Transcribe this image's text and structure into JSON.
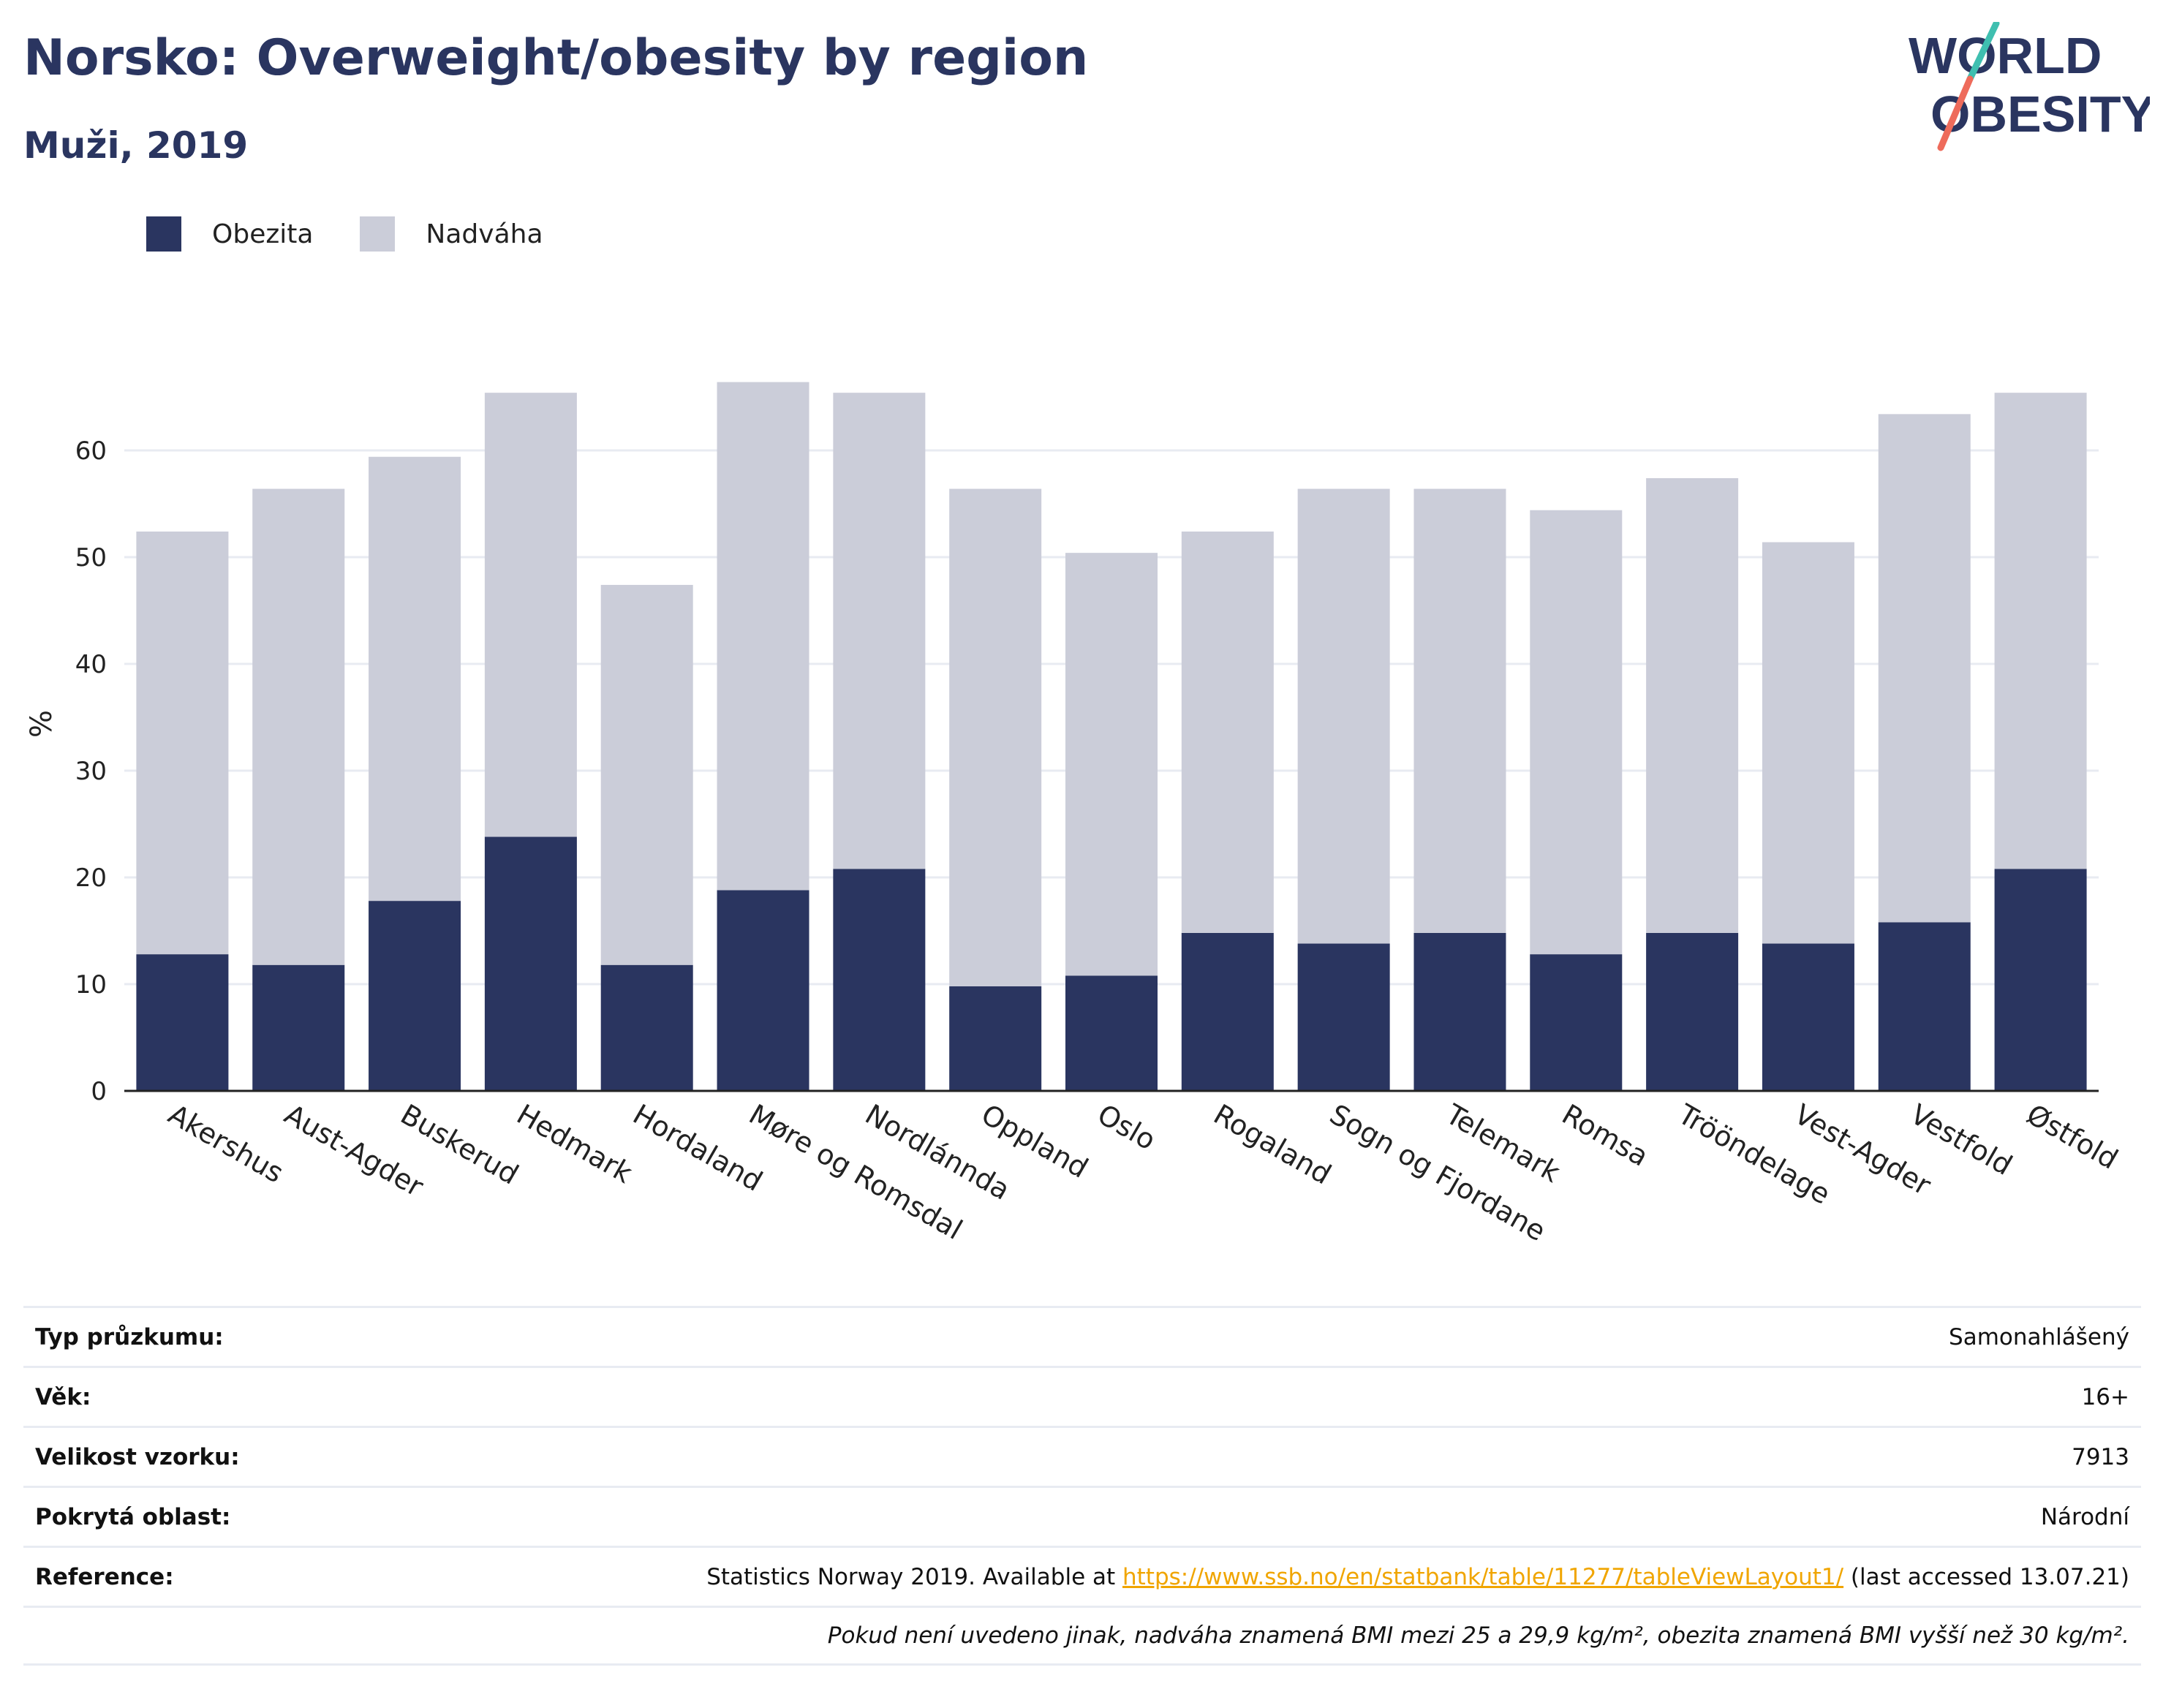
{
  "header": {
    "title": "Norsko: Overweight/obesity by region",
    "subtitle": "Muži, 2019"
  },
  "logo": {
    "line1": "WORLD",
    "line2": "OBESITY"
  },
  "colors": {
    "obesity": "#2a3560",
    "overweight": "#cbcdd9",
    "grid": "#e8ebf2",
    "axis": "#222222",
    "link": "#f0a500"
  },
  "legend": [
    {
      "label": "Obezita",
      "color": "#2a3560"
    },
    {
      "label": "Nadváha",
      "color": "#cbcdd9"
    }
  ],
  "chart_data": {
    "type": "bar",
    "stacked": true,
    "ylabel": "%",
    "ylim": [
      0,
      70
    ],
    "yticks": [
      0,
      10,
      20,
      30,
      40,
      50,
      60
    ],
    "categories": [
      "Akershus",
      "Aust-Agder",
      "Buskerud",
      "Hedmark",
      "Hordaland",
      "Møre og Romsdal",
      "Nordlánnda",
      "Oppland",
      "Oslo",
      "Rogaland",
      "Sogn og Fjordane",
      "Telemark",
      "Romsa",
      "Trööndelage",
      "Vest-Agder",
      "Vestfold",
      "Østfold"
    ],
    "series": [
      {
        "name": "Obezita",
        "values": [
          12.8,
          11.8,
          17.8,
          23.8,
          11.8,
          18.8,
          20.8,
          9.8,
          10.8,
          14.8,
          13.8,
          14.8,
          12.8,
          14.8,
          13.8,
          15.8,
          20.8
        ]
      },
      {
        "name": "Nadváha",
        "values": [
          39.6,
          44.6,
          41.6,
          41.6,
          35.6,
          47.6,
          44.6,
          46.6,
          39.6,
          37.6,
          42.6,
          41.6,
          41.6,
          42.6,
          37.6,
          47.6,
          44.6
        ]
      }
    ],
    "grid": true,
    "legend_position": "top-left"
  },
  "info": {
    "rows": [
      {
        "label": "Typ průzkumu:",
        "value": "Samonahlášený"
      },
      {
        "label": "Věk:",
        "value": "16+"
      },
      {
        "label": "Velikost vzorku:",
        "value": "7913"
      },
      {
        "label": "Pokrytá oblast:",
        "value": "Národní"
      }
    ],
    "reference": {
      "label": "Reference:",
      "prefix": "Statistics Norway 2019. Available at ",
      "link": "https://www.ssb.no/en/statbank/table/11277/tableViewLayout1/",
      "suffix": " (last accessed 13.07.21)"
    },
    "note": "Pokud není uvedeno jinak, nadváha znamená BMI mezi 25 a 29,9 kg/m², obezita znamená BMI vyšší než 30 kg/m²."
  }
}
